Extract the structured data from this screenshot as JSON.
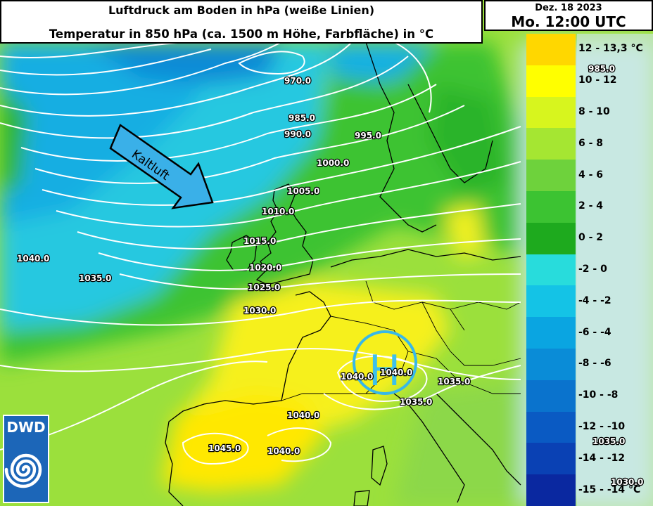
{
  "header": {
    "title_line1": "Luftdruck am Boden in hPa (weiße Linien)",
    "title_line2": "Temperatur in 850 hPa (ca. 1500 m Höhe, Farbfläche) in °C"
  },
  "date_box": {
    "date": "Dez. 18 2023",
    "time": "Mo. 12:00 UTC"
  },
  "legend": {
    "items": [
      {
        "label": "12 - 13,3 °C",
        "color": "#ffd700"
      },
      {
        "label": "10 - 12",
        "color": "#ffff00"
      },
      {
        "label": "8 - 10",
        "color": "#d7f51e"
      },
      {
        "label": "6 - 8",
        "color": "#a5e632"
      },
      {
        "label": "4 - 6",
        "color": "#6ed23c"
      },
      {
        "label": "2 - 4",
        "color": "#3cc332"
      },
      {
        "label": "0 - 2",
        "color": "#1eaa1e"
      },
      {
        "label": "-2 - 0",
        "color": "#28dcdc"
      },
      {
        "label": "-4 - -2",
        "color": "#14c3e6"
      },
      {
        "label": "-6 - -4",
        "color": "#0aa5e1"
      },
      {
        "label": "-8 - -6",
        "color": "#0a8cd7"
      },
      {
        "label": "-10 - -8",
        "color": "#0a73cd"
      },
      {
        "label": "-12 - -10",
        "color": "#0a5ac3"
      },
      {
        "label": "-14 - -12",
        "color": "#0a41b4"
      },
      {
        "label": "-15 - -14 °C",
        "color": "#0a28a0"
      }
    ]
  },
  "isobars": [
    {
      "label": "970.0"
    },
    {
      "label": "985.0"
    },
    {
      "label": "990.0"
    },
    {
      "label": "995.0"
    },
    {
      "label": "1000.0"
    },
    {
      "label": "1005.0"
    },
    {
      "label": "1010.0"
    },
    {
      "label": "1015.0"
    },
    {
      "label": "1020.0"
    },
    {
      "label": "1025.0"
    },
    {
      "label": "1030.0"
    },
    {
      "label": "1035.0"
    },
    {
      "label": "1040.0"
    },
    {
      "label": "1045.0"
    }
  ],
  "labels": {
    "l1040_west": "1040.0",
    "l1035_west": "1035.0",
    "l1040_france": "1040.0",
    "l1045": "1045.0",
    "l1040_spain": "1040.0",
    "l1040_h1": "1040.0",
    "l1040_h2": "1040.0",
    "l1035_alps1": "1035.0",
    "l1035_alps2": "1035.0",
    "l985_right": "985.0",
    "l1035_right": "1035.0",
    "l1030_right": "1030.0"
  },
  "annotations": {
    "arrow_label": "Kaltluft",
    "high_label": "H"
  },
  "logo": {
    "text": "DWD"
  }
}
